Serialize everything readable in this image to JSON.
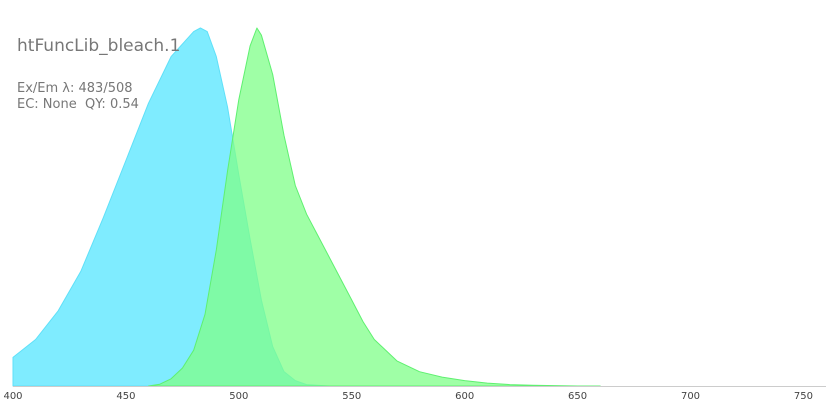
{
  "panel": {
    "title": "htFuncLib_bleach.1",
    "ex_em_line": "Ex/Em λ: 483/508",
    "ec_qy_line": "EC: None  QY: 0.54"
  },
  "chart_data": {
    "type": "area",
    "title": "htFuncLib_bleach.1",
    "xlabel": "",
    "ylabel": "",
    "xlim": [
      400,
      760
    ],
    "ylim": [
      0,
      1
    ],
    "x_ticks": [
      400,
      450,
      500,
      550,
      600,
      650,
      700,
      750
    ],
    "grid": false,
    "legend": "none",
    "series": [
      {
        "role": "excitation",
        "color": "#7fecff",
        "stroke": "#5fe0f8",
        "x": [
          400,
          410,
          420,
          430,
          440,
          450,
          460,
          470,
          480,
          483,
          486,
          490,
          495,
          500,
          505,
          510,
          515,
          520,
          525,
          530,
          540
        ],
        "y": [
          0.08,
          0.13,
          0.21,
          0.32,
          0.47,
          0.63,
          0.79,
          0.92,
          0.99,
          1.0,
          0.99,
          0.92,
          0.78,
          0.59,
          0.41,
          0.24,
          0.11,
          0.04,
          0.015,
          0.004,
          0.0
        ]
      },
      {
        "role": "emission",
        "color": "#7fff88",
        "stroke": "#5ff070",
        "x": [
          460,
          465,
          470,
          475,
          480,
          485,
          490,
          495,
          500,
          505,
          508,
          510,
          515,
          520,
          525,
          530,
          535,
          540,
          545,
          550,
          555,
          560,
          570,
          580,
          590,
          600,
          610,
          620,
          630,
          640,
          650,
          660
        ],
        "y": [
          0.0,
          0.005,
          0.02,
          0.05,
          0.1,
          0.2,
          0.38,
          0.6,
          0.8,
          0.95,
          1.0,
          0.98,
          0.87,
          0.7,
          0.56,
          0.48,
          0.42,
          0.36,
          0.3,
          0.24,
          0.18,
          0.13,
          0.07,
          0.04,
          0.025,
          0.015,
          0.008,
          0.004,
          0.002,
          0.001,
          0.0,
          0.0
        ]
      }
    ]
  }
}
